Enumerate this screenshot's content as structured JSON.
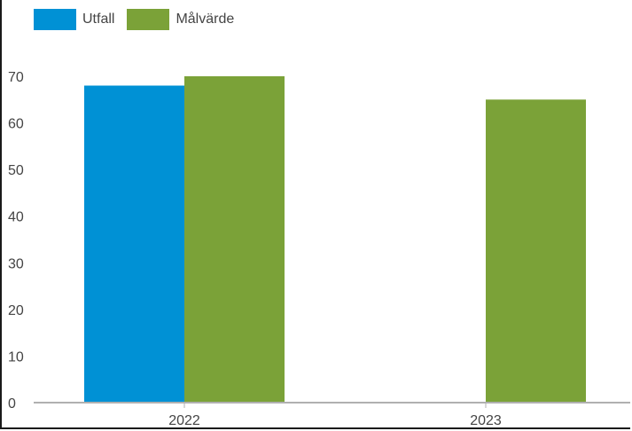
{
  "chart_data": {
    "type": "bar",
    "title": "",
    "xlabel": "",
    "ylabel": "",
    "categories": [
      "2022",
      "2023"
    ],
    "series": [
      {
        "name": "Utfall",
        "values": [
          68,
          null
        ],
        "color": "#0091D5"
      },
      {
        "name": "Målvärde",
        "values": [
          70,
          65
        ],
        "color": "#7BA238"
      }
    ],
    "ylim": [
      0,
      70
    ],
    "yticks": [
      0,
      10,
      20,
      30,
      40,
      50,
      60,
      70
    ],
    "grid": false,
    "legend_position": "top-left"
  }
}
